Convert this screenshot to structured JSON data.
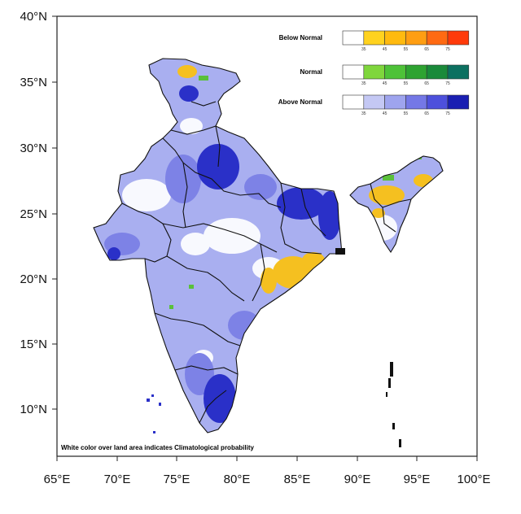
{
  "map": {
    "lat_ticks": [
      "10°N",
      "15°N",
      "20°N",
      "25°N",
      "30°N",
      "35°N",
      "40°N"
    ],
    "lon_ticks": [
      "65°E",
      "70°E",
      "75°E",
      "80°E",
      "85°E",
      "90°E",
      "95°E",
      "100°E"
    ],
    "lat_range": [
      6,
      40
    ],
    "lon_range": [
      65,
      100
    ],
    "note": "White color over land area indicates Climatological probability"
  },
  "legend": {
    "tick_labels": [
      "35",
      "45",
      "55",
      "65",
      "75"
    ],
    "categories": [
      {
        "label": "Below Normal",
        "colors": [
          "#ffffff",
          "#ffd21f",
          "#ffba0f",
          "#ff9e12",
          "#ff6a12",
          "#ff3a0a"
        ]
      },
      {
        "label": "Normal",
        "colors": [
          "#ffffff",
          "#7fd63c",
          "#4ec238",
          "#2ea331",
          "#1a8a3a",
          "#0c7060"
        ]
      },
      {
        "label": "Above Normal",
        "colors": [
          "#ffffff",
          "#c4c8f4",
          "#9ea4ee",
          "#7478e6",
          "#4d50dc",
          "#1a1fb2"
        ]
      }
    ]
  },
  "colors": {
    "land_base": "#a9aff0",
    "above_strong": "#2a30c8",
    "above_mid": "#7d82e6",
    "below": "#f5c020",
    "normal": "#5ac03a",
    "boundary": "#111111"
  }
}
